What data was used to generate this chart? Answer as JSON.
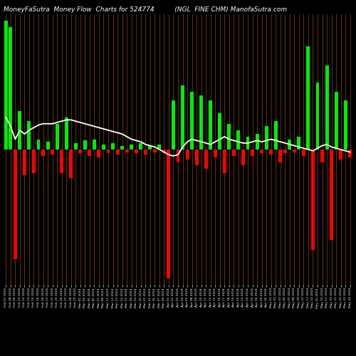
{
  "title_left": "MoneyFaSutra  Money Flow  Charts for 524774",
  "title_right": "(NGL  FINE CHM) ManofaSutra.com",
  "background_color": "#000000",
  "bar_color_positive": "#00EE00",
  "bar_color_negative": "#FF0000",
  "line_color": "#FFFFFF",
  "thin_line_color": "#8B4513",
  "title_color": "#FFFFFF",
  "title_fontsize": 6.5,
  "bar_values": [
    100,
    95,
    -85,
    30,
    -20,
    22,
    -18,
    8,
    -5,
    6,
    -4,
    20,
    -18,
    25,
    -22,
    5,
    -3,
    7,
    -5,
    8,
    -6,
    4,
    -3,
    5,
    -4,
    3,
    -2,
    4,
    -3,
    5,
    -4,
    3,
    -2,
    4,
    -3,
    -100,
    38,
    -10,
    50,
    -8,
    45,
    -12,
    42,
    -15,
    38,
    -6,
    28,
    -18,
    20,
    -5,
    15,
    -12,
    10,
    -5,
    12,
    -3,
    18,
    -4,
    22,
    -10,
    -3,
    8,
    -2,
    10,
    -5,
    80,
    -78,
    52,
    -10,
    65,
    -70,
    45,
    -8,
    38,
    -6
  ],
  "line_values": [
    75,
    68,
    58,
    65,
    62,
    65,
    67,
    69,
    70,
    70,
    70,
    71,
    72,
    73,
    73,
    72,
    71,
    70,
    69,
    68,
    67,
    66,
    65,
    64,
    63,
    62,
    60,
    58,
    57,
    56,
    54,
    53,
    52,
    50,
    48,
    46,
    45,
    46,
    52,
    56,
    58,
    57,
    56,
    55,
    54,
    56,
    58,
    60,
    58,
    57,
    56,
    55,
    55,
    56,
    57,
    56,
    57,
    58,
    57,
    56,
    55,
    54,
    53,
    52,
    51,
    50,
    49,
    51,
    53,
    54,
    52,
    51,
    50,
    49,
    48
  ],
  "xlabels": [
    "Feb 07 2024",
    "Feb 08 2024",
    "Feb 09 2024",
    "Feb 12 2024",
    "Feb 13 2024",
    "Feb 14 2024",
    "Feb 15 2024",
    "Feb 16 2024",
    "Feb 20 2024",
    "Feb 21 2024",
    "Feb 22 2024",
    "Feb 23 2024",
    "Feb 26 2024",
    "Feb 27 2024",
    "Feb 28 2024",
    "Feb 29 2024",
    "Mar 01 2024",
    "Mar 04 2024",
    "Mar 05 2024",
    "Mar 06 2024",
    "Mar 07 2024",
    "Mar 08 2024",
    "Mar 11 2024",
    "Mar 12 2024",
    "Mar 13 2024",
    "Mar 14 2024",
    "Mar 15 2024",
    "Mar 18 2024",
    "Mar 19 2024",
    "Mar 20 2024",
    "Mar 21 2024",
    "Mar 22 2024",
    "Mar 26 2024",
    "Mar 27 2024",
    "Mar 28 2024",
    "Apr 01 2024",
    "Apr 02 2024",
    "Apr 03 2024",
    "Apr 04 2024",
    "Apr 05 2024",
    "Apr 08 2024",
    "Apr 09 2024",
    "Apr 10 2024",
    "Apr 11 2024",
    "Apr 12 2024",
    "Apr 15 2024",
    "Apr 16 2024",
    "Apr 17 2024",
    "Apr 18 2024",
    "Apr 19 2024",
    "Apr 22 2024",
    "Apr 23 2024",
    "Apr 24 2024",
    "Apr 25 2024",
    "Apr 26 2024",
    "Apr 29 2024",
    "Apr 30 2024",
    "May 01 2024",
    "May 02 2024",
    "May 03 2024",
    "May 06 2024",
    "May 07 2024",
    "May 08 2024",
    "May 09 2024",
    "May 10 2024",
    "May 13 2024",
    "May 14 2024",
    "May 15 2024",
    "May 16 2024",
    "May 17 2024",
    "May 20 2024",
    "May 21 2024",
    "May 22 2024",
    "May 23 2024",
    "May 24 2024"
  ]
}
